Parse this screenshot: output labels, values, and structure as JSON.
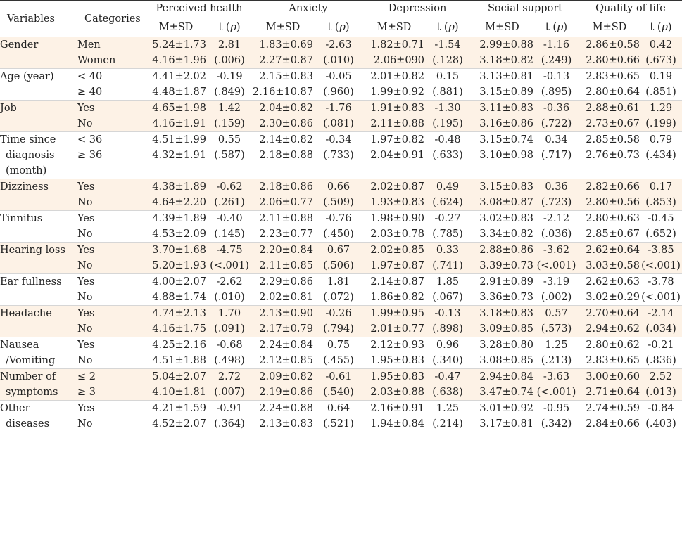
{
  "header": {
    "variables": "Variables",
    "categories": "Categories",
    "groups": [
      "Perceived health",
      "Anxiety",
      "Depression",
      "Social support",
      "Quality of life"
    ],
    "sub_ms": "M±SD",
    "sub_t": "t",
    "sub_p": "p"
  },
  "rows": [
    {
      "var": [
        "Gender"
      ],
      "cats": [
        "Men",
        "Women"
      ],
      "ph": {
        "ms": [
          "5.24±1.73",
          "4.16±1.96"
        ],
        "t": "2.81",
        "p": "(.006)"
      },
      "anx": {
        "ms": [
          "1.83±0.69",
          "2.27±0.87"
        ],
        "t": "-2.63",
        "p": "(.010)"
      },
      "dep": {
        "ms": [
          "1.82±0.71",
          "2.06±090"
        ],
        "t": "-1.54",
        "p": "(.128)"
      },
      "ss": {
        "ms": [
          "2.99±0.88",
          "3.18±0.82"
        ],
        "t": "-1.16",
        "p": "(.249)"
      },
      "qol": {
        "ms": [
          "2.86±0.58",
          "2.80±0.66"
        ],
        "t": "0.42",
        "p": "(.673)"
      }
    },
    {
      "var": [
        "Age (year)"
      ],
      "cats": [
        "< 40",
        "≥ 40"
      ],
      "ph": {
        "ms": [
          "4.41±2.02",
          "4.48±1.87"
        ],
        "t": "-0.19",
        "p": "(.849)"
      },
      "anx": {
        "ms": [
          "2.15±0.83",
          "2.16±10.87"
        ],
        "t": "-0.05",
        "p": "(.960)"
      },
      "dep": {
        "ms": [
          "2.01±0.82",
          "1.99±0.92"
        ],
        "t": "0.15",
        "p": "(.881)"
      },
      "ss": {
        "ms": [
          "3.13±0.81",
          "3.15±0.89"
        ],
        "t": "-0.13",
        "p": "(.895)"
      },
      "qol": {
        "ms": [
          "2.83±0.65",
          "2.80±0.64"
        ],
        "t": "0.19",
        "p": "(.851)"
      }
    },
    {
      "var": [
        "Job"
      ],
      "cats": [
        "Yes",
        "No"
      ],
      "ph": {
        "ms": [
          "4.65±1.98",
          "4.16±1.91"
        ],
        "t": "1.42",
        "p": "(.159)"
      },
      "anx": {
        "ms": [
          "2.04±0.82",
          "2.30±0.86"
        ],
        "t": "-1.76",
        "p": "(.081)"
      },
      "dep": {
        "ms": [
          "1.91±0.83",
          "2.11±0.88"
        ],
        "t": "-1.30",
        "p": "(.195)"
      },
      "ss": {
        "ms": [
          "3.11±0.83",
          "3.16±0.86"
        ],
        "t": "-0.36",
        "p": "(.722)"
      },
      "qol": {
        "ms": [
          "2.88±0.61",
          "2.73±0.67"
        ],
        "t": "1.29",
        "p": "(.199)"
      }
    },
    {
      "var": [
        "Time since",
        "diagnosis",
        "(month)"
      ],
      "cats": [
        "< 36",
        "≥ 36"
      ],
      "ph": {
        "ms": [
          "4.51±1.99",
          "4.32±1.91"
        ],
        "t": "0.55",
        "p": "(.587)"
      },
      "anx": {
        "ms": [
          "2.14±0.82",
          "2.18±0.88"
        ],
        "t": "-0.34",
        "p": "(.733)"
      },
      "dep": {
        "ms": [
          "1.97±0.82",
          "2.04±0.91"
        ],
        "t": "-0.48",
        "p": "(.633)"
      },
      "ss": {
        "ms": [
          "3.15±0.74",
          "3.10±0.98"
        ],
        "t": "0.34",
        "p": "(.717)"
      },
      "qol": {
        "ms": [
          "2.85±0.58",
          "2.76±0.73"
        ],
        "t": "0.79",
        "p": "(.434)"
      }
    },
    {
      "var": [
        "Dizziness"
      ],
      "cats": [
        "Yes",
        "No"
      ],
      "ph": {
        "ms": [
          "4.38±1.89",
          "4.64±2.20"
        ],
        "t": "-0.62",
        "p": "(.261)"
      },
      "anx": {
        "ms": [
          "2.18±0.86",
          "2.06±0.77"
        ],
        "t": "0.66",
        "p": "(.509)"
      },
      "dep": {
        "ms": [
          "2.02±0.87",
          "1.93±0.83"
        ],
        "t": "0.49",
        "p": "(.624)"
      },
      "ss": {
        "ms": [
          "3.15±0.83",
          "3.08±0.87"
        ],
        "t": "0.36",
        "p": "(.723)"
      },
      "qol": {
        "ms": [
          "2.82±0.66",
          "2.80±0.56"
        ],
        "t": "0.17",
        "p": "(.853)"
      }
    },
    {
      "var": [
        "Tinnitus"
      ],
      "cats": [
        "Yes",
        "No"
      ],
      "ph": {
        "ms": [
          "4.39±1.89",
          "4.53±2.09"
        ],
        "t": "-0.40",
        "p": "(.145)"
      },
      "anx": {
        "ms": [
          "2.11±0.88",
          "2.23±0.77"
        ],
        "t": "-0.76",
        "p": "(.450)"
      },
      "dep": {
        "ms": [
          "1.98±0.90",
          "2.03±0.78"
        ],
        "t": "-0.27",
        "p": "(.785)"
      },
      "ss": {
        "ms": [
          "3.02±0.83",
          "3.34±0.82"
        ],
        "t": "-2.12",
        "p": "(.036)"
      },
      "qol": {
        "ms": [
          "2.80±0.63",
          "2.85±0.67"
        ],
        "t": "-0.45",
        "p": "(.652)"
      }
    },
    {
      "var": [
        "Hearing loss"
      ],
      "cats": [
        "Yes",
        "No"
      ],
      "ph": {
        "ms": [
          "3.70±1.68",
          "5.20±1.93"
        ],
        "t": "-4.75",
        "p": "(<.001)"
      },
      "anx": {
        "ms": [
          "2.20±0.84",
          "2.11±0.85"
        ],
        "t": "0.67",
        "p": "(.506)"
      },
      "dep": {
        "ms": [
          "2.02±0.85",
          "1.97±0.87"
        ],
        "t": "0.33",
        "p": "(.741)"
      },
      "ss": {
        "ms": [
          "2.88±0.86",
          "3.39±0.73"
        ],
        "t": "-3.62",
        "p": "(<.001)"
      },
      "qol": {
        "ms": [
          "2.62±0.64",
          "3.03±0.58"
        ],
        "t": "-3.85",
        "p": "(<.001)"
      }
    },
    {
      "var": [
        "Ear fullness"
      ],
      "cats": [
        "Yes",
        "No"
      ],
      "ph": {
        "ms": [
          "4.00±2.07",
          "4.88±1.74"
        ],
        "t": "-2.62",
        "p": "(.010)"
      },
      "anx": {
        "ms": [
          "2.29±0.86",
          "2.02±0.81"
        ],
        "t": "1.81",
        "p": "(.072)"
      },
      "dep": {
        "ms": [
          "2.14±0.87",
          "1.86±0.82"
        ],
        "t": "1.85",
        "p": "(.067)"
      },
      "ss": {
        "ms": [
          "2.91±0.89",
          "3.36±0.73"
        ],
        "t": "-3.19",
        "p": "(.002)"
      },
      "qol": {
        "ms": [
          "2.62±0.63",
          "3.02±0.29"
        ],
        "t": "-3.78",
        "p": "(<.001)"
      }
    },
    {
      "var": [
        "Headache"
      ],
      "cats": [
        "Yes",
        "No"
      ],
      "ph": {
        "ms": [
          "4.74±2.13",
          "4.16±1.75"
        ],
        "t": "1.70",
        "p": "(.091)"
      },
      "anx": {
        "ms": [
          "2.13±0.90",
          "2.17±0.79"
        ],
        "t": "-0.26",
        "p": "(.794)"
      },
      "dep": {
        "ms": [
          "1.99±0.95",
          "2.01±0.77"
        ],
        "t": "-0.13",
        "p": "(.898)"
      },
      "ss": {
        "ms": [
          "3.18±0.83",
          "3.09±0.85"
        ],
        "t": "0.57",
        "p": "(.573)"
      },
      "qol": {
        "ms": [
          "2.70±0.64",
          "2.94±0.62"
        ],
        "t": "-2.14",
        "p": "(.034)"
      }
    },
    {
      "var": [
        "Nausea",
        "/Vomiting"
      ],
      "cats": [
        "Yes",
        "No"
      ],
      "ph": {
        "ms": [
          "4.25±2.16",
          "4.51±1.88"
        ],
        "t": "-0.68",
        "p": "(.498)"
      },
      "anx": {
        "ms": [
          "2.24±0.84",
          "2.12±0.85"
        ],
        "t": "0.75",
        "p": "(.455)"
      },
      "dep": {
        "ms": [
          "2.12±0.93",
          "1.95±0.83"
        ],
        "t": "0.96",
        "p": "(.340)"
      },
      "ss": {
        "ms": [
          "3.28±0.80",
          "3.08±0.85"
        ],
        "t": "1.25",
        "p": "(.213)"
      },
      "qol": {
        "ms": [
          "2.80±0.62",
          "2.83±0.65"
        ],
        "t": "-0.21",
        "p": "(.836)"
      }
    },
    {
      "var": [
        "Number of",
        "symptoms"
      ],
      "cats": [
        "≤ 2",
        "≥ 3"
      ],
      "ph": {
        "ms": [
          "5.04±2.07",
          "4.10±1.81"
        ],
        "t": "2.72",
        "p": "(.007)"
      },
      "anx": {
        "ms": [
          "2.09±0.82",
          "2.19±0.86"
        ],
        "t": "-0.61",
        "p": "(.540)"
      },
      "dep": {
        "ms": [
          "1.95±0.83",
          "2.03±0.88"
        ],
        "t": "-0.47",
        "p": "(.638)"
      },
      "ss": {
        "ms": [
          "2.94±0.84",
          "3.47±0.74"
        ],
        "t": "-3.63",
        "p": "(<.001)"
      },
      "qol": {
        "ms": [
          "3.00±0.60",
          "2.71±0.64"
        ],
        "t": "2.52",
        "p": "(.013)"
      }
    },
    {
      "var": [
        "Other",
        "diseases"
      ],
      "cats": [
        "Yes",
        "No"
      ],
      "ph": {
        "ms": [
          "4.21±1.59",
          "4.52±2.07"
        ],
        "t": "-0.91",
        "p": "(.364)"
      },
      "anx": {
        "ms": [
          "2.24±0.88",
          "2.13±0.83"
        ],
        "t": "0.64",
        "p": "(.521)"
      },
      "dep": {
        "ms": [
          "2.16±0.91",
          "1.94±0.84"
        ],
        "t": "1.25",
        "p": "(.214)"
      },
      "ss": {
        "ms": [
          "3.01±0.92",
          "3.17±0.81"
        ],
        "t": "-0.95",
        "p": "(.342)"
      },
      "qol": {
        "ms": [
          "2.74±0.59",
          "2.84±0.66"
        ],
        "t": "-0.84",
        "p": "(.403)"
      }
    }
  ]
}
